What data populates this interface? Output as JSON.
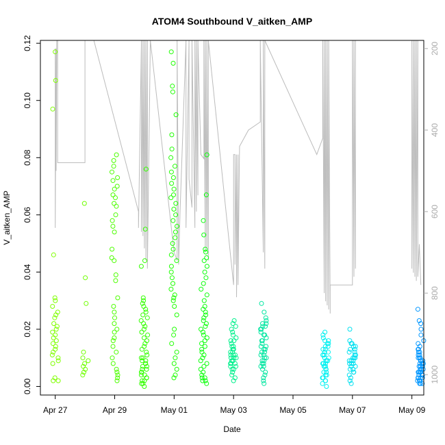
{
  "chart_data": {
    "type": "scatter",
    "title": "ATOM4 Southbound V_aitken_AMP",
    "xlabel": "Date",
    "ylabel": "V_aitken_AMP",
    "x_ticks": [
      "Apr 27",
      "Apr 29",
      "May 01",
      "May 03",
      "May 05",
      "May 07",
      "May 09"
    ],
    "x_range_days": [
      -0.5,
      12.4
    ],
    "ylim": [
      -0.003,
      0.121
    ],
    "y_ticks": [
      "0.00",
      "0.02",
      "0.04",
      "0.06",
      "0.08",
      "0.10",
      "0.12"
    ],
    "y_tick_values": [
      0,
      0.02,
      0.04,
      0.06,
      0.08,
      0.1,
      0.12
    ],
    "right_axis": {
      "ticks": [
        "200",
        "400",
        "600",
        "800",
        "1000"
      ],
      "tick_values": [
        200,
        400,
        600,
        800,
        1000
      ],
      "range": [
        1050,
        180
      ],
      "color": "#aaaaaa"
    },
    "series": [
      {
        "name": "Apr 27",
        "day": 0.0,
        "color": "#7fff00",
        "values": [
          0.117,
          0.107,
          0.097,
          0.046,
          0.031,
          0.03,
          0.028,
          0.026,
          0.025,
          0.024,
          0.022,
          0.021,
          0.02,
          0.019,
          0.018,
          0.017,
          0.016,
          0.015,
          0.014,
          0.013,
          0.012,
          0.011,
          0.01,
          0.009,
          0.008,
          0.003,
          0.002,
          0.002
        ]
      },
      {
        "name": "Apr 28",
        "day": 1.0,
        "color": "#6fff00",
        "values": [
          0.064,
          0.038,
          0.029,
          0.012,
          0.01,
          0.009,
          0.008,
          0.007,
          0.006,
          0.005,
          0.004
        ]
      },
      {
        "name": "Apr 29",
        "day": 2.0,
        "color": "#4dff00",
        "values": [
          0.081,
          0.079,
          0.077,
          0.075,
          0.073,
          0.072,
          0.07,
          0.069,
          0.067,
          0.066,
          0.064,
          0.063,
          0.06,
          0.058,
          0.056,
          0.054,
          0.048,
          0.045,
          0.044,
          0.039,
          0.037,
          0.031,
          0.028,
          0.026,
          0.024,
          0.022,
          0.02,
          0.019,
          0.017,
          0.016,
          0.014,
          0.012,
          0.01,
          0.008,
          0.006,
          0.005,
          0.004,
          0.003,
          0.002
        ]
      },
      {
        "name": "Apr 30",
        "day": 3.0,
        "color": "#33ff00",
        "values": [
          0.076,
          0.055,
          0.044,
          0.042,
          0.031,
          0.03,
          0.029,
          0.028,
          0.027,
          0.026,
          0.025,
          0.024,
          0.023,
          0.022,
          0.021,
          0.02,
          0.019,
          0.018,
          0.017,
          0.016,
          0.015,
          0.014,
          0.013,
          0.012,
          0.011,
          0.01,
          0.01,
          0.009,
          0.009,
          0.008,
          0.008,
          0.007,
          0.007,
          0.006,
          0.006,
          0.005,
          0.005,
          0.004,
          0.004,
          0.003,
          0.003,
          0.002,
          0.002,
          0.001,
          0.001,
          0.0
        ]
      },
      {
        "name": "May 01",
        "day": 4.0,
        "color": "#1eff00",
        "values": [
          0.117,
          0.113,
          0.105,
          0.103,
          0.095,
          0.088,
          0.083,
          0.08,
          0.077,
          0.075,
          0.073,
          0.071,
          0.069,
          0.067,
          0.066,
          0.064,
          0.062,
          0.06,
          0.058,
          0.056,
          0.054,
          0.052,
          0.05,
          0.048,
          0.046,
          0.044,
          0.042,
          0.04,
          0.038,
          0.036,
          0.034,
          0.032,
          0.031,
          0.03,
          0.028,
          0.025,
          0.02,
          0.018,
          0.015,
          0.012,
          0.01,
          0.008,
          0.006,
          0.004,
          0.003
        ]
      },
      {
        "name": "May 02",
        "day": 5.0,
        "color": "#0cff0c",
        "values": [
          0.081,
          0.067,
          0.058,
          0.053,
          0.048,
          0.047,
          0.045,
          0.044,
          0.042,
          0.04,
          0.038,
          0.036,
          0.034,
          0.032,
          0.03,
          0.028,
          0.027,
          0.026,
          0.025,
          0.024,
          0.023,
          0.022,
          0.021,
          0.02,
          0.019,
          0.018,
          0.017,
          0.016,
          0.015,
          0.014,
          0.013,
          0.012,
          0.011,
          0.01,
          0.009,
          0.008,
          0.007,
          0.006,
          0.005,
          0.004,
          0.003,
          0.003,
          0.002,
          0.002,
          0.001
        ]
      },
      {
        "name": "May 03",
        "day": 6.0,
        "color": "#00f08c",
        "values": [
          0.023,
          0.022,
          0.021,
          0.02,
          0.019,
          0.018,
          0.017,
          0.016,
          0.016,
          0.015,
          0.014,
          0.014,
          0.013,
          0.013,
          0.012,
          0.012,
          0.011,
          0.011,
          0.011,
          0.01,
          0.01,
          0.01,
          0.009,
          0.009,
          0.009,
          0.008,
          0.008,
          0.008,
          0.007,
          0.007,
          0.006,
          0.006,
          0.005,
          0.004,
          0.003,
          0.002
        ]
      },
      {
        "name": "May 04",
        "day": 7.0,
        "color": "#00e6a0",
        "values": [
          0.029,
          0.026,
          0.024,
          0.023,
          0.022,
          0.022,
          0.021,
          0.021,
          0.02,
          0.02,
          0.019,
          0.018,
          0.018,
          0.017,
          0.016,
          0.016,
          0.015,
          0.014,
          0.014,
          0.013,
          0.013,
          0.012,
          0.012,
          0.011,
          0.011,
          0.01,
          0.01,
          0.009,
          0.009,
          0.008,
          0.008,
          0.007,
          0.007,
          0.006,
          0.005,
          0.004,
          0.003,
          0.002,
          0.001
        ]
      },
      {
        "name": "May 06",
        "day": 9.1,
        "color": "#00f0f0",
        "values": [
          0.019,
          0.018,
          0.017,
          0.016,
          0.016,
          0.015,
          0.015,
          0.014,
          0.014,
          0.013,
          0.013,
          0.012,
          0.012,
          0.011,
          0.011,
          0.011,
          0.01,
          0.01,
          0.01,
          0.009,
          0.009,
          0.009,
          0.008,
          0.008,
          0.008,
          0.007,
          0.007,
          0.007,
          0.006,
          0.006,
          0.005,
          0.005,
          0.004,
          0.004,
          0.003,
          0.003,
          0.002,
          0.002,
          0.001,
          0.0
        ]
      },
      {
        "name": "May 07",
        "day": 10.0,
        "color": "#00e0f0",
        "values": [
          0.02,
          0.016,
          0.015,
          0.015,
          0.014,
          0.014,
          0.013,
          0.013,
          0.012,
          0.012,
          0.011,
          0.011,
          0.01,
          0.01,
          0.01,
          0.009,
          0.009,
          0.009,
          0.008,
          0.008,
          0.008,
          0.007,
          0.007,
          0.006,
          0.006,
          0.005,
          0.005,
          0.004,
          0.003,
          0.002,
          0.001
        ]
      },
      {
        "name": "May 09",
        "day": 12.3,
        "color": "#0096ff",
        "values": [
          0.027,
          0.023,
          0.022,
          0.02,
          0.018,
          0.016,
          0.015,
          0.014,
          0.013,
          0.013,
          0.012,
          0.012,
          0.011,
          0.011,
          0.01,
          0.01,
          0.01,
          0.009,
          0.009,
          0.009,
          0.008,
          0.008,
          0.008,
          0.008,
          0.007,
          0.007,
          0.007,
          0.007,
          0.006,
          0.006,
          0.006,
          0.006,
          0.005,
          0.005,
          0.005,
          0.005,
          0.004,
          0.004,
          0.004,
          0.004,
          0.003,
          0.003,
          0.003,
          0.003,
          0.002,
          0.002,
          0.002,
          0.001,
          0.001,
          0.001
        ]
      }
    ],
    "altitude_trace": {
      "color": "#bbbbbb",
      "points": [
        [
          0.0,
          200
        ],
        [
          0.0,
          640
        ],
        [
          0.03,
          200
        ],
        [
          0.03,
          500
        ],
        [
          0.05,
          180
        ],
        [
          0.08,
          180
        ],
        [
          0.08,
          480
        ],
        [
          0.5,
          480
        ],
        [
          1.0,
          480
        ],
        [
          1.0,
          180
        ],
        [
          1.3,
          180
        ],
        [
          2.8,
          600
        ],
        [
          2.8,
          640
        ],
        [
          2.9,
          180
        ],
        [
          2.9,
          650
        ],
        [
          2.95,
          180
        ],
        [
          2.95,
          660
        ],
        [
          3.0,
          180
        ],
        [
          3.0,
          690
        ],
        [
          3.05,
          180
        ],
        [
          3.05,
          720
        ],
        [
          3.1,
          180
        ],
        [
          3.1,
          740
        ],
        [
          3.2,
          180
        ],
        [
          4.0,
          700
        ],
        [
          4.1,
          720
        ],
        [
          4.1,
          180
        ],
        [
          4.15,
          730
        ],
        [
          4.2,
          600
        ],
        [
          4.4,
          180
        ],
        [
          4.4,
          640
        ],
        [
          4.5,
          180
        ],
        [
          4.5,
          520
        ],
        [
          4.6,
          590
        ],
        [
          4.6,
          180
        ],
        [
          4.7,
          640
        ],
        [
          4.7,
          180
        ],
        [
          4.75,
          600
        ],
        [
          4.75,
          180
        ],
        [
          4.8,
          560
        ],
        [
          4.8,
          180
        ],
        [
          4.9,
          460
        ],
        [
          5.0,
          470
        ],
        [
          5.0,
          180
        ],
        [
          5.05,
          700
        ],
        [
          5.05,
          180
        ],
        [
          5.1,
          690
        ],
        [
          5.1,
          180
        ],
        [
          5.15,
          720
        ],
        [
          5.15,
          180
        ],
        [
          6.0,
          780
        ],
        [
          6.0,
          460
        ],
        [
          6.05,
          460
        ],
        [
          6.05,
          730
        ],
        [
          6.1,
          460
        ],
        [
          6.1,
          810
        ],
        [
          6.15,
          460
        ],
        [
          6.15,
          780
        ],
        [
          6.2,
          440
        ],
        [
          6.5,
          400
        ],
        [
          6.9,
          380
        ],
        [
          6.9,
          180
        ],
        [
          7.0,
          700
        ],
        [
          7.0,
          180
        ],
        [
          7.05,
          740
        ],
        [
          7.05,
          180
        ],
        [
          8.8,
          460
        ],
        [
          9.0,
          420
        ],
        [
          9.0,
          180
        ],
        [
          9.05,
          800
        ],
        [
          9.05,
          180
        ],
        [
          9.1,
          820
        ],
        [
          9.1,
          180
        ],
        [
          9.15,
          830
        ],
        [
          9.15,
          180
        ],
        [
          9.2,
          840
        ],
        [
          9.2,
          180
        ],
        [
          9.25,
          850
        ],
        [
          9.25,
          780
        ],
        [
          9.8,
          780
        ],
        [
          10.0,
          780
        ],
        [
          10.0,
          180
        ],
        [
          10.05,
          760
        ],
        [
          10.05,
          180
        ],
        [
          10.1,
          740
        ],
        [
          10.1,
          180
        ],
        [
          12.0,
          180
        ],
        [
          12.0,
          740
        ],
        [
          12.05,
          180
        ],
        [
          12.05,
          750
        ],
        [
          12.1,
          180
        ],
        [
          12.1,
          760
        ],
        [
          12.15,
          180
        ],
        [
          12.15,
          770
        ],
        [
          12.2,
          180
        ],
        [
          12.2,
          760
        ],
        [
          12.25,
          680
        ],
        [
          12.3,
          780
        ]
      ]
    }
  }
}
